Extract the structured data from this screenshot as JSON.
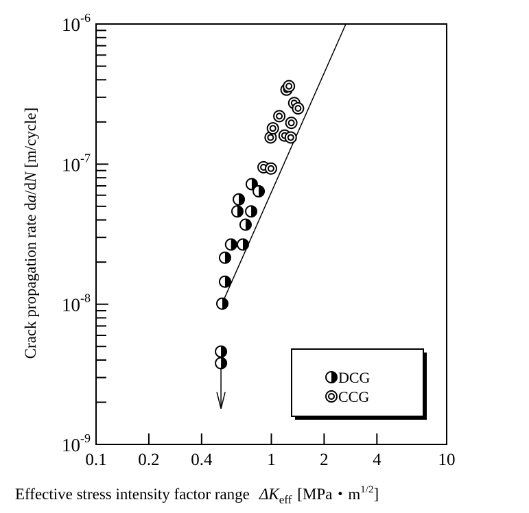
{
  "chart_data": {
    "type": "scatter",
    "title": "",
    "xlabel": {
      "prefix": "Effective stress intensity factor range",
      "symbol": "ΔK",
      "subscript": "eff",
      "unit_open": "[MPa・m",
      "unit_exp": "1/2",
      "unit_close": "]"
    },
    "ylabel": {
      "part1": "Crack propagation rate d",
      "italic1": "a",
      "part2": "/d",
      "italic2": "N",
      "part3": " [m/cycle]"
    },
    "x_scale": "log",
    "y_scale": "log",
    "xlim": [
      0.1,
      10
    ],
    "ylim": [
      1e-09,
      1e-06
    ],
    "x_ticks": [
      {
        "value": 0.1,
        "label": "0.1"
      },
      {
        "value": 0.2,
        "label": "0.2"
      },
      {
        "value": 0.4,
        "label": "0.4"
      },
      {
        "value": 1,
        "label": "1"
      },
      {
        "value": 2,
        "label": "2"
      },
      {
        "value": 4,
        "label": "4"
      },
      {
        "value": 10,
        "label": "10"
      }
    ],
    "y_ticks": [
      {
        "value": 1e-06,
        "base": "10",
        "exp": "-6"
      },
      {
        "value": 1e-07,
        "base": "10",
        "exp": "-7"
      },
      {
        "value": 1e-08,
        "base": "10",
        "exp": "-8"
      },
      {
        "value": 1e-09,
        "base": "10",
        "exp": "-9"
      }
    ],
    "grid": false,
    "legend_position": "bottom-right",
    "series": [
      {
        "name": "DCG",
        "marker": "half-filled-circle",
        "points": [
          [
            0.525,
            1.01e-08
          ],
          [
            0.544,
            1.45e-08
          ],
          [
            0.544,
            2.15e-08
          ],
          [
            0.589,
            2.67e-08
          ],
          [
            0.688,
            2.67e-08
          ],
          [
            0.713,
            3.7e-08
          ],
          [
            0.64,
            4.6e-08
          ],
          [
            0.767,
            4.6e-08
          ],
          [
            0.652,
            5.6e-08
          ],
          [
            0.773,
            7.2e-08
          ],
          [
            0.847,
            6.4e-08
          ],
          [
            0.516,
            4.6e-09
          ],
          [
            0.516,
            3.8e-09
          ]
        ]
      },
      {
        "name": "CCG",
        "marker": "double-circle",
        "points": [
          [
            0.902,
            9.5e-08
          ],
          [
            0.995,
            9.3e-08
          ],
          [
            0.99,
            1.55e-07
          ],
          [
            1.02,
            1.8e-07
          ],
          [
            1.11,
            2.2e-07
          ],
          [
            1.19,
            1.6e-07
          ],
          [
            1.29,
            1.55e-07
          ],
          [
            1.3,
            1.97e-07
          ],
          [
            1.35,
            2.73e-07
          ],
          [
            1.42,
            2.5e-07
          ],
          [
            1.22,
            3.4e-07
          ],
          [
            1.26,
            3.6e-07
          ]
        ]
      }
    ],
    "fit_line": {
      "from": [
        0.51,
        9.4e-09
      ],
      "to": [
        2.66,
        1e-06
      ]
    },
    "threshold_arrow": {
      "x": 0.516,
      "from": 3.8e-09,
      "to": 1.8e-09
    }
  }
}
